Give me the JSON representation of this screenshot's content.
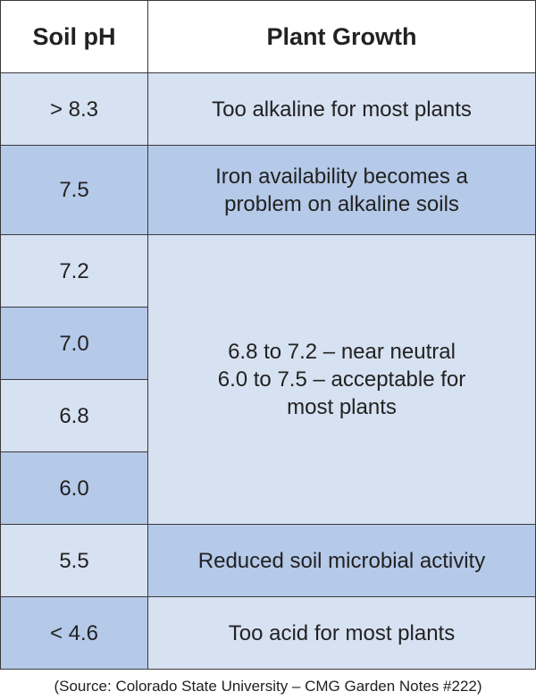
{
  "table": {
    "header": [
      "Soil pH",
      "Plant Growth"
    ],
    "ph": [
      "> 8.3",
      "7.5",
      "7.2",
      "7.0",
      "6.8",
      "6.0",
      "5.5",
      "< 4.6"
    ],
    "growth": [
      {
        "lines": [
          "Too alkaline for most plants"
        ]
      },
      {
        "lines": [
          "Iron availability becomes a",
          "problem on alkaline soils"
        ]
      },
      {
        "lines": [
          "6.8 to 7.2 – near neutral",
          "6.0 to 7.5 – acceptable for",
          "most plants"
        ]
      },
      {
        "lines": [
          "Reduced soil microbial activity"
        ]
      },
      {
        "lines": [
          "Too acid for most plants"
        ]
      }
    ]
  },
  "source": "(Source: Colorado State University – CMG Garden Notes #222)"
}
